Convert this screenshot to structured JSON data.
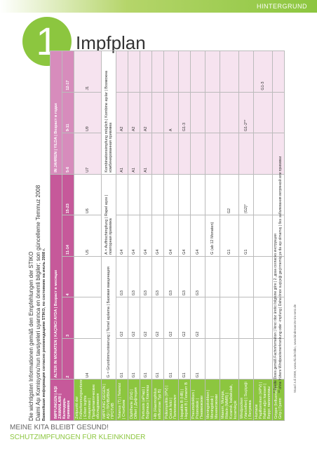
{
  "header": {
    "section": "HINTERGRUND",
    "number": "1",
    "title": "Impfplan"
  },
  "table": {
    "title_lines": [
      "Die wichtigsten Informationen gemäß den Empfehlungen der STIKO",
      "Daimi Aşı Komisyonu'nun tavsiyeleri uyarınca en önemli bilgiler; son güncelleme Temmuz 2008",
      "Важнейшая информация согласно рекомендациям STIKO, по состоянию на июль 2008 г."
    ],
    "head_label": "IMPFUNGEN | AŞI ZAMANLARI | Календарь прививок",
    "head_months": "ALTER IN MONATEN | KAÇINCI AYDA | Возраст в месяцах",
    "head_years": "IN JAHREN | YILDA | Возраст в годах",
    "ages": [
      "2",
      "3",
      "4",
      "11-14",
      "15-23",
      "5-6",
      "9-11",
      "12-17"
    ],
    "checkup": {
      "label": "Zeitpunkt der Früherkennungsuntersuchungen | Erken teşhis muayenesi | Профилактические обследования",
      "cells": [
        "U4",
        "",
        "",
        "U5",
        "U6",
        "U7",
        "U9",
        "J1"
      ]
    },
    "legend": {
      "label": "IMPFUNG GEGEN | AŞI | ПРИВИВКА ПРОТИВ",
      "g": "G = Grundimmunisierung | Temel aşılama | Базовая вакцинация",
      "a": "A = Auffrischimpfung | Rapel aşısı | повторная прививка",
      "k": "Kombinationsimpfung möglich | Kombine aşılar | Возможна комбинированная прививка"
    },
    "rows": [
      {
        "label": "Tetanus (T) | Tetanoz | Столбняк",
        "cells": [
          "G1",
          "G2",
          "G3",
          "G4",
          "",
          "A1",
          "A2",
          ""
        ]
      },
      {
        "label": "Diphtherie (D/d) | Difteri | Дифтерия",
        "cells": [
          "G1",
          "G2",
          "G3",
          "G4",
          "",
          "A1",
          "A2",
          ""
        ]
      },
      {
        "label": "Pertussis (aP/ap) | Boğmaca | Коклюш",
        "cells": [
          "G1",
          "G2",
          "G3",
          "G4",
          "",
          "A1",
          "A2",
          ""
        ]
      },
      {
        "label": "Hib (Haemophilus influenzae Typ B)",
        "cells": [
          "G1",
          "G2",
          "G3",
          "G4",
          "",
          "",
          "",
          ""
        ]
      },
      {
        "label": "Poliomyelitis (IPV) | Çocuk felci | Полиомиелит",
        "cells": [
          "G1",
          "G2",
          "G3",
          "G4",
          "",
          "",
          "A",
          ""
        ]
      },
      {
        "label": "Hepatitis B (HB) | Hepatit B | Гепатит B",
        "cells": [
          "G1",
          "G2",
          "G3",
          "G4",
          "",
          "",
          "G1-3",
          ""
        ]
      },
      {
        "label": "Pneumokokken | Pnömokok | Пневмококки",
        "cells": [
          "G1",
          "G2",
          "G3",
          "G4",
          "",
          "",
          "",
          ""
        ]
      },
      {
        "label": "Meningokokken | Meningokok | Менингококки",
        "cells": [
          "",
          "",
          "",
          "G (ab 12 Monaten)",
          "",
          "",
          "",
          ""
        ]
      },
      {
        "label": "Masern, Mumps, Röteln (MMR) | Kızamık, kabakulak, kızamıkçık",
        "cells": [
          "",
          "",
          "",
          "G1",
          "G2",
          "",
          "",
          ""
        ]
      },
      {
        "label": "Windpocken (Varizellen) | Suçiçeği | Ветрянка",
        "cells": [
          "",
          "",
          "",
          "G1",
          "(G2)*",
          "",
          "G1-2**",
          ""
        ]
      },
      {
        "label": "Humane Papillomviren (HPV) | Rahim ağzı kanseri | Вирус папилломы",
        "cells": [
          "",
          "",
          "",
          "",
          "",
          "",
          "",
          "G1-3"
        ]
      },
      {
        "label": "Grippe (Influenza) | Grip | Грипп",
        "cells": [
          "",
          "",
          "",
          "",
          "",
          "",
          "",
          ""
        ]
      }
    ],
    "footnotes": [
      "* Zweite Dosis gemäß Fachinformation | İkinci doz üretici bilgisine göre | 2. доза согласно инструкции",
      "** ohne frühere Windpockenerkrankung oder -impfung | Daha önce suçiçeği geçirmemiş ya da aşı olmamış | без заболевания ветрянкой или прививки"
    ],
    "source": "Stand Juli 2008, www.rki.de/stiko, www.kinderaerzte-im-netz.de"
  },
  "footer": {
    "line1": "MEINE KITA BLEIBT GESUND!",
    "line2": "SCHUTZIMPFUNGEN FÜR KLEINKINDER"
  }
}
